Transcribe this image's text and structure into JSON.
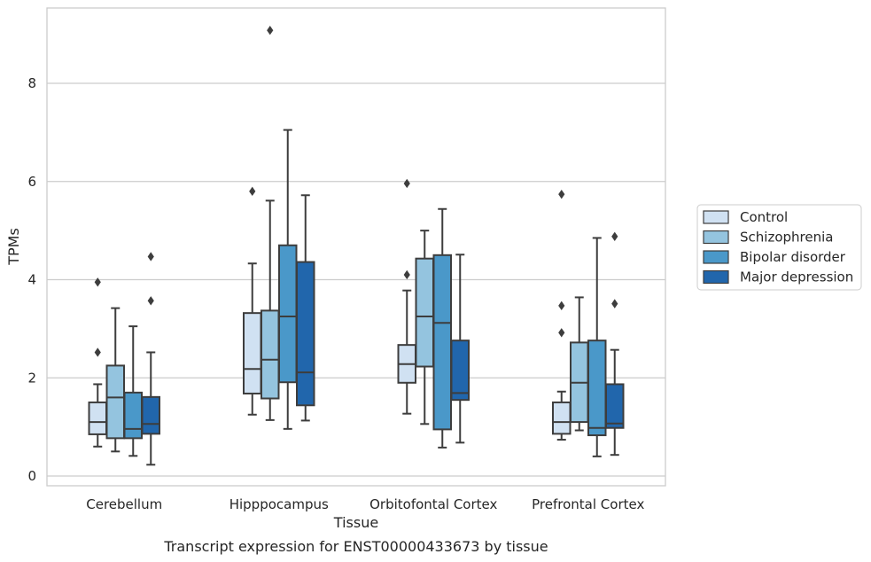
{
  "chart_data": {
    "type": "box",
    "xlabel": "Tissue",
    "ylabel": "TPMs",
    "caption": "Transcript expression for ENST00000433673 by tissue",
    "ylim": [
      -0.2,
      9.7
    ],
    "yticks": [
      0,
      2,
      4,
      6,
      8
    ],
    "grid": "horizontal",
    "legend_position": "right",
    "categories": [
      "Cerebellum",
      "Hipppocampus",
      "Orbitofontal Cortex",
      "Prefrontal Cortex"
    ],
    "series": [
      {
        "name": "Control",
        "color": "#d0e1f2",
        "boxes": [
          {
            "min": 0.6,
            "q1": 0.85,
            "median": 1.1,
            "q3": 1.5,
            "max": 1.87,
            "outliers": [
              2.52,
              3.95
            ]
          },
          {
            "min": 1.25,
            "q1": 1.68,
            "median": 2.18,
            "q3": 3.32,
            "max": 4.33,
            "outliers": [
              5.8
            ]
          },
          {
            "min": 1.27,
            "q1": 1.9,
            "median": 2.28,
            "q3": 2.67,
            "max": 3.78,
            "outliers": [
              4.1,
              5.96
            ]
          },
          {
            "min": 0.74,
            "q1": 0.86,
            "median": 1.1,
            "q3": 1.5,
            "max": 1.72,
            "outliers": [
              2.92,
              3.47,
              5.74
            ]
          }
        ]
      },
      {
        "name": "Schizophrenia",
        "color": "#94c4df",
        "boxes": [
          {
            "min": 0.5,
            "q1": 0.77,
            "median": 1.6,
            "q3": 2.25,
            "max": 3.42,
            "outliers": []
          },
          {
            "min": 1.14,
            "q1": 1.58,
            "median": 2.37,
            "q3": 3.37,
            "max": 5.61,
            "outliers": [
              9.08
            ]
          },
          {
            "min": 1.06,
            "q1": 2.23,
            "median": 3.25,
            "q3": 4.43,
            "max": 5.0,
            "outliers": []
          },
          {
            "min": 0.93,
            "q1": 1.1,
            "median": 1.9,
            "q3": 2.72,
            "max": 3.64,
            "outliers": []
          }
        ]
      },
      {
        "name": "Bipolar disorder",
        "color": "#4a98c9",
        "boxes": [
          {
            "min": 0.41,
            "q1": 0.77,
            "median": 0.96,
            "q3": 1.7,
            "max": 3.05,
            "outliers": []
          },
          {
            "min": 0.96,
            "q1": 1.91,
            "median": 3.25,
            "q3": 4.7,
            "max": 7.05,
            "outliers": []
          },
          {
            "min": 0.58,
            "q1": 0.95,
            "median": 3.12,
            "q3": 4.5,
            "max": 5.44,
            "outliers": []
          },
          {
            "min": 0.4,
            "q1": 0.83,
            "median": 0.98,
            "q3": 2.76,
            "max": 4.85,
            "outliers": []
          }
        ]
      },
      {
        "name": "Major depression",
        "color": "#2166ac",
        "boxes": [
          {
            "min": 0.23,
            "q1": 0.86,
            "median": 1.06,
            "q3": 1.61,
            "max": 2.52,
            "outliers": [
              3.57,
              4.47
            ]
          },
          {
            "min": 1.13,
            "q1": 1.44,
            "median": 2.11,
            "q3": 4.36,
            "max": 5.72,
            "outliers": []
          },
          {
            "min": 0.68,
            "q1": 1.55,
            "median": 1.69,
            "q3": 2.76,
            "max": 4.51,
            "outliers": []
          },
          {
            "min": 0.43,
            "q1": 0.98,
            "median": 1.07,
            "q3": 1.87,
            "max": 2.57,
            "outliers": [
              3.51,
              4.88
            ]
          }
        ]
      }
    ]
  }
}
